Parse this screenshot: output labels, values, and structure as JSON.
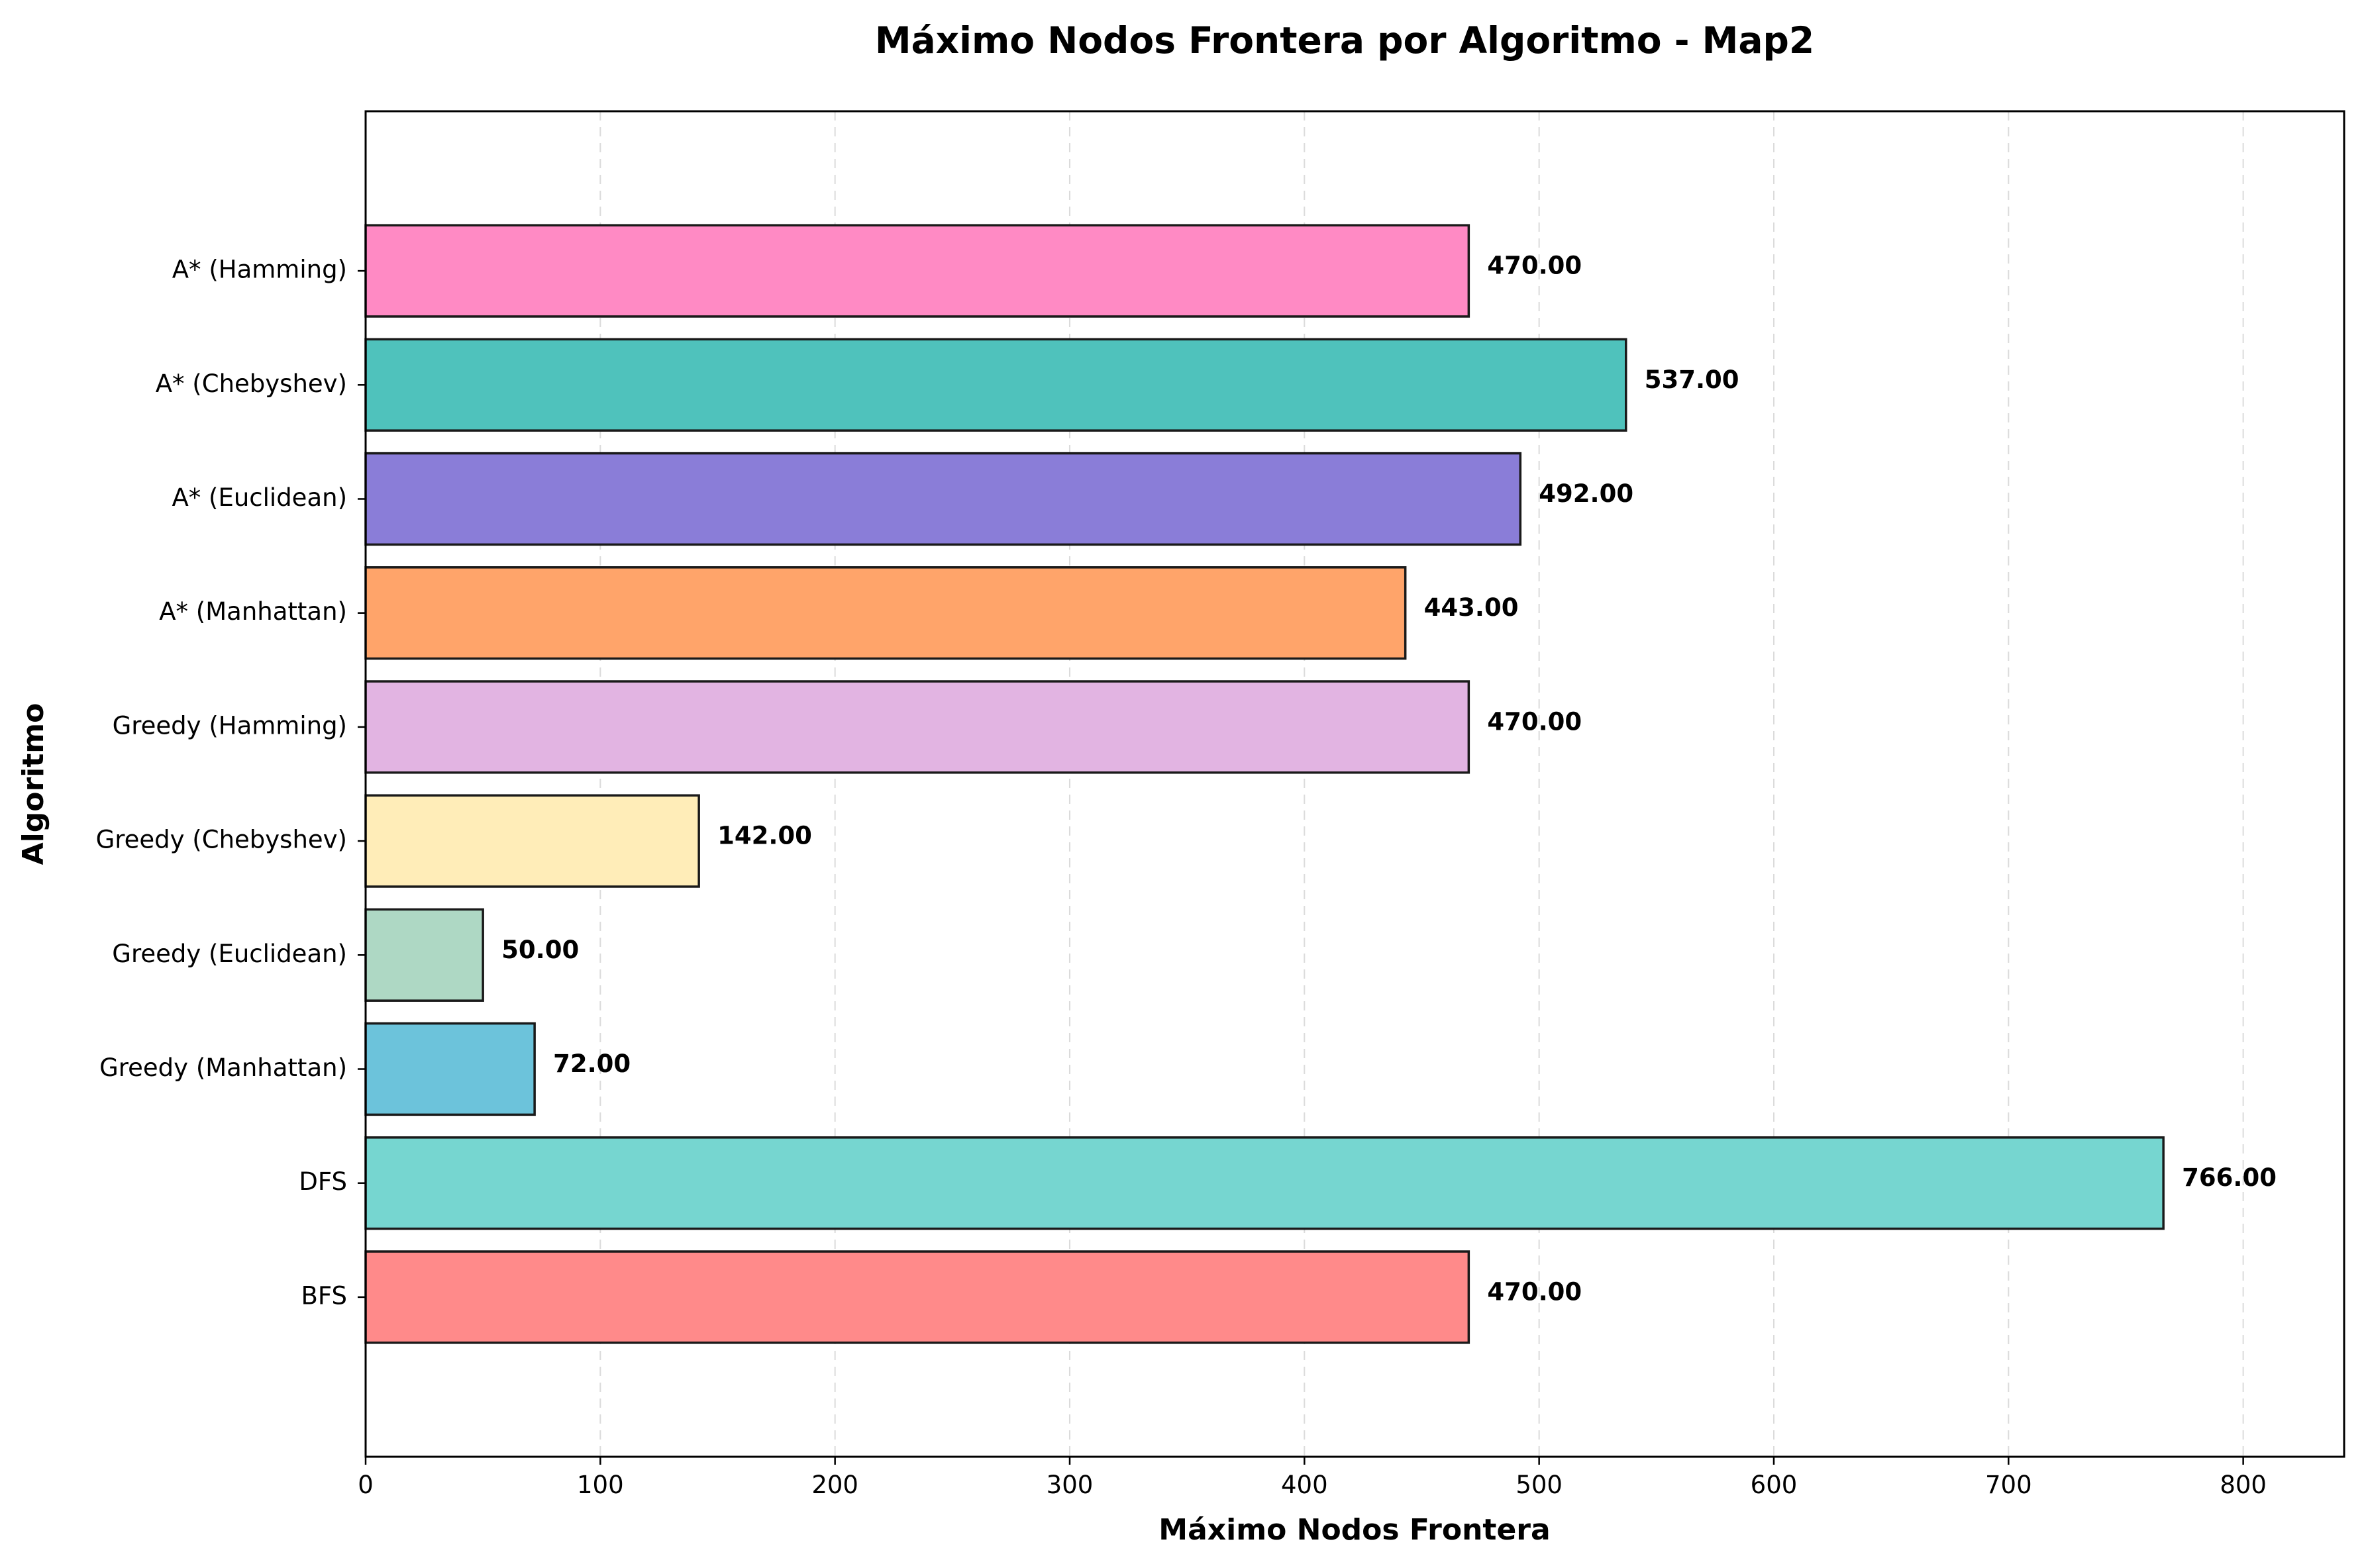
{
  "chart_data": {
    "type": "bar",
    "orientation": "horizontal",
    "title": "Máximo Nodos Frontera por Algoritmo - Map2",
    "xlabel": "Máximo Nodos Frontera",
    "ylabel": "Algoritmo",
    "xlim": [
      0,
      843
    ],
    "xticks": [
      0,
      100,
      200,
      300,
      400,
      500,
      600,
      700,
      800
    ],
    "grid": "x-dashed",
    "categories": [
      "BFS",
      "DFS",
      "Greedy (Manhattan)",
      "Greedy (Euclidean)",
      "Greedy (Chebyshev)",
      "Greedy (Hamming)",
      "A* (Manhattan)",
      "A* (Euclidean)",
      "A* (Chebyshev)",
      "A* (Hamming)"
    ],
    "values": [
      470,
      766,
      72,
      50,
      142,
      470,
      443,
      492,
      537,
      470
    ],
    "value_labels": [
      "470.00",
      "766.00",
      "72.00",
      "50.00",
      "142.00",
      "470.00",
      "443.00",
      "492.00",
      "537.00",
      "470.00"
    ],
    "colors": [
      "#ff8a8a",
      "#76d6d0",
      "#6cc3db",
      "#aed8c4",
      "#ffedb8",
      "#e2b4e2",
      "#ffa46a",
      "#8a7dd8",
      "#4fc2bc",
      "#ff8ac4"
    ]
  }
}
